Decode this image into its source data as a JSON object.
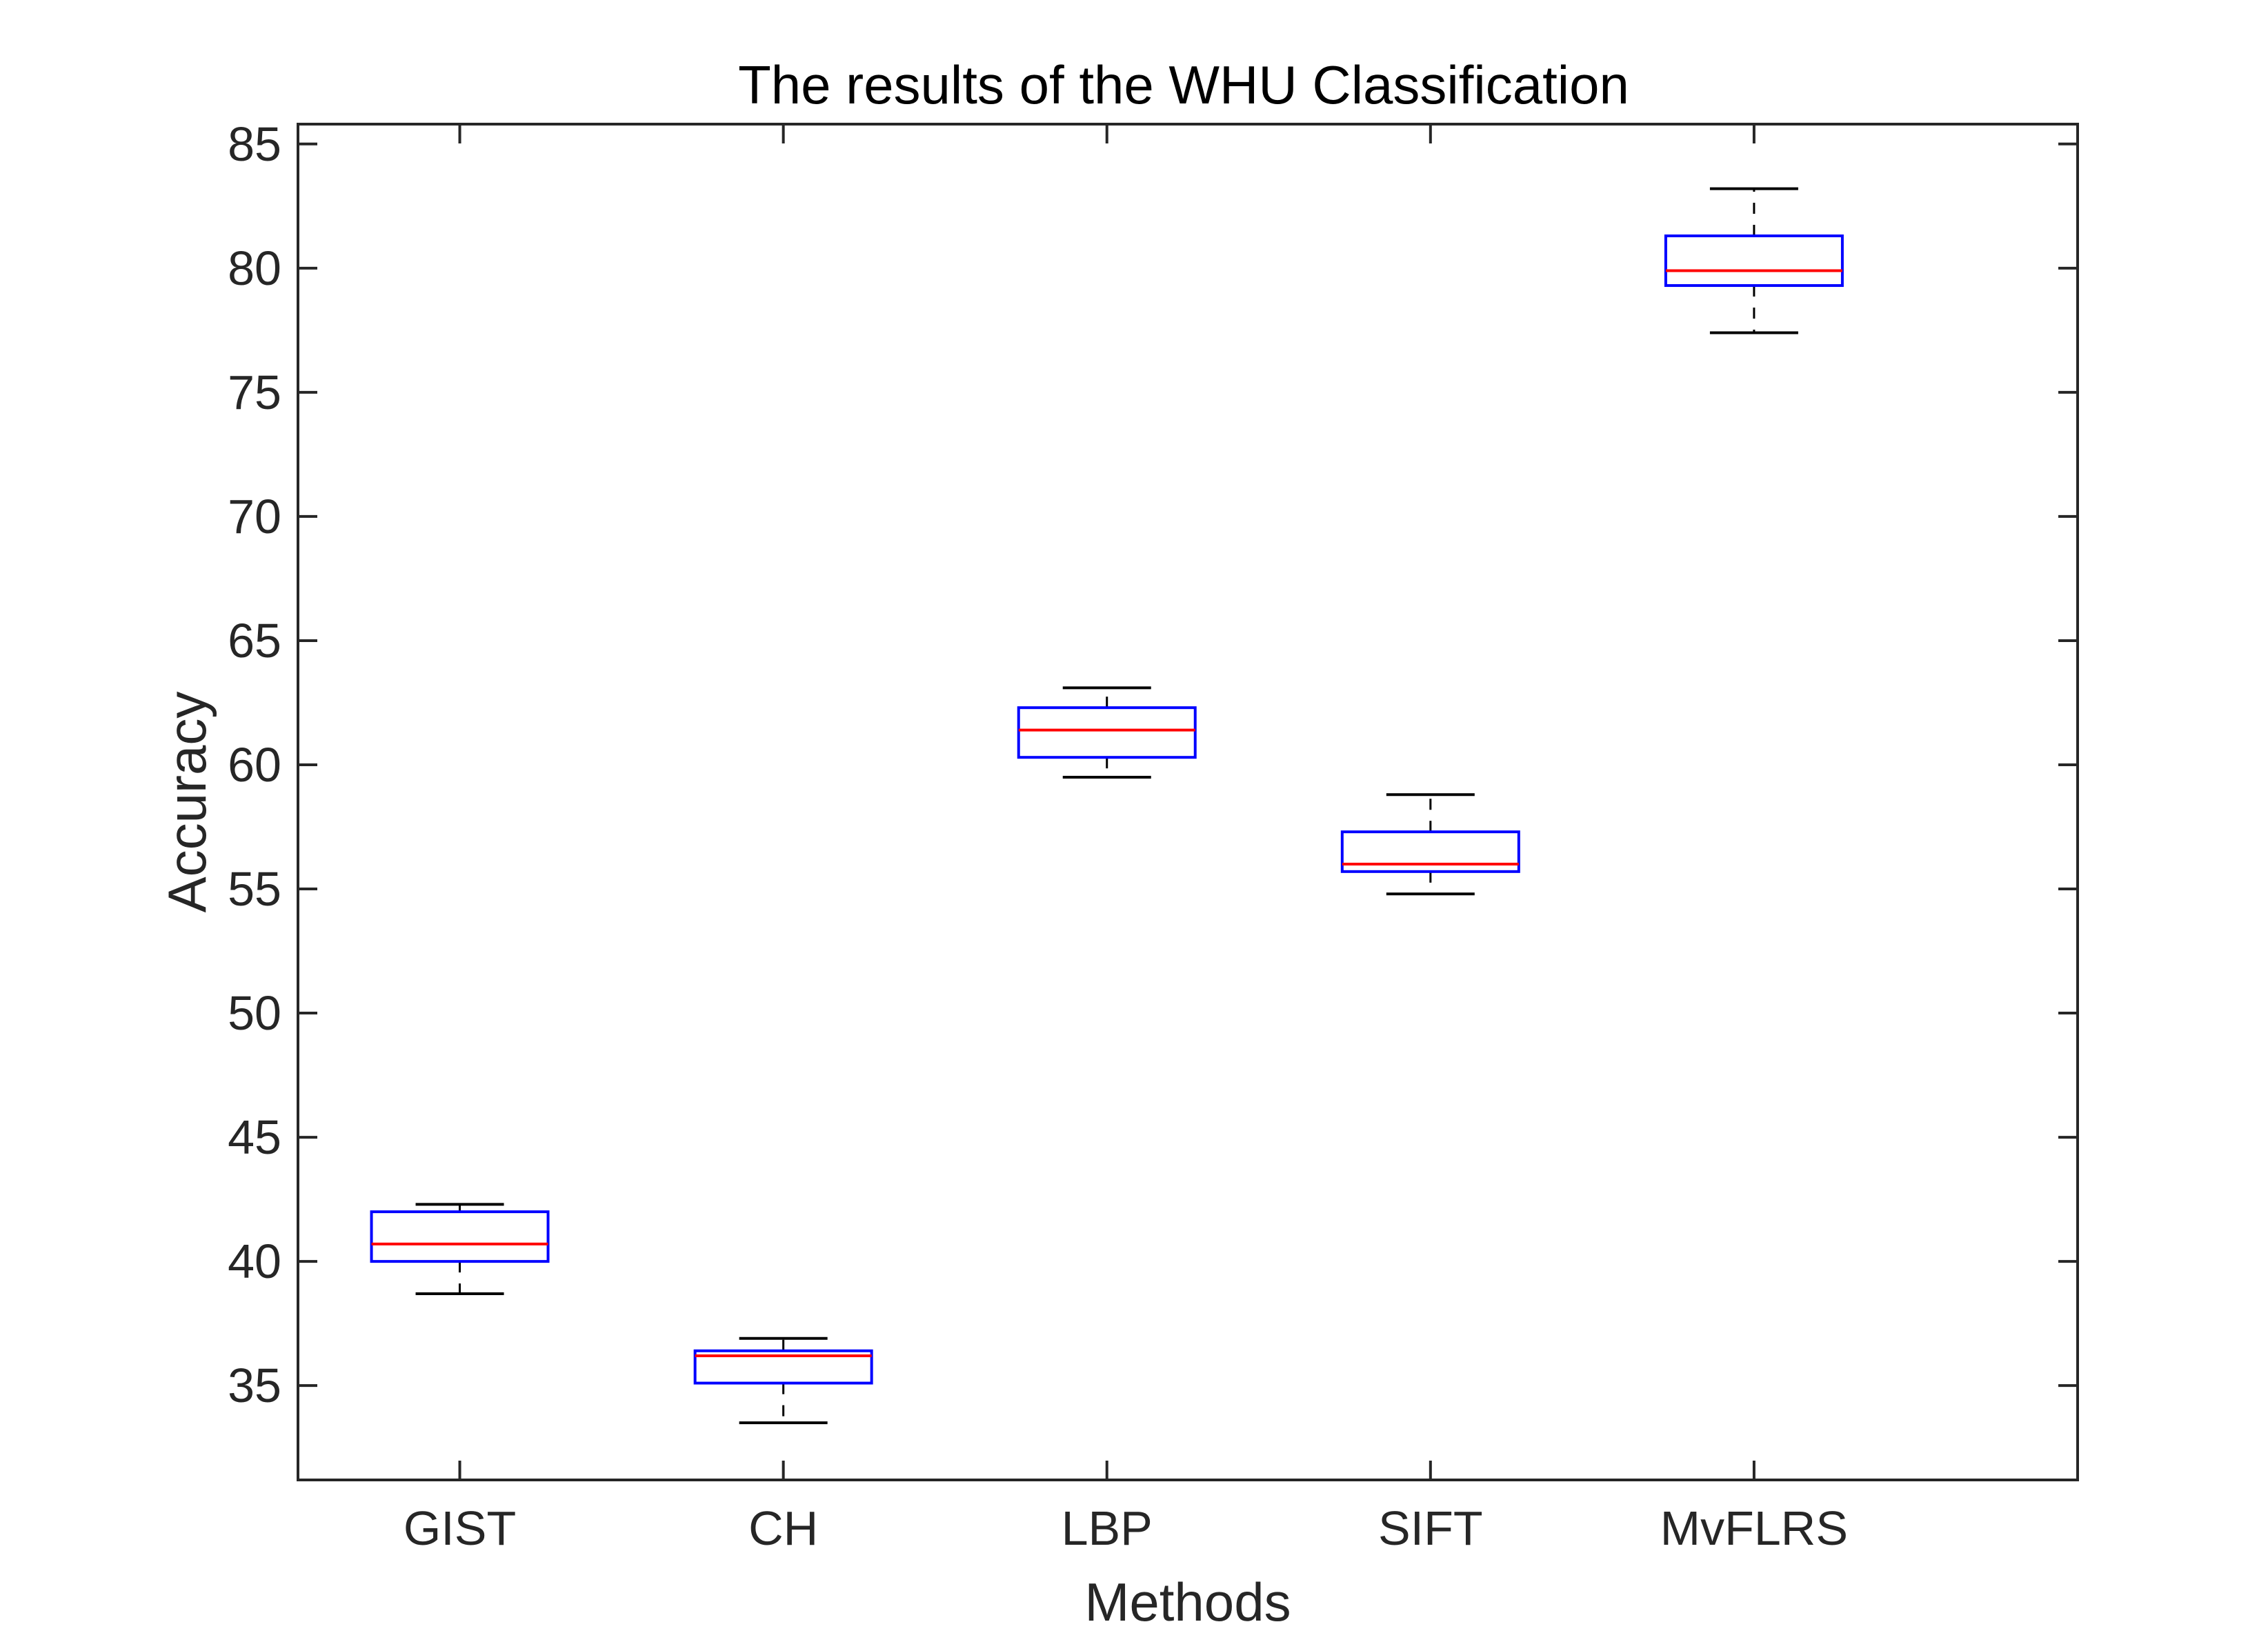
{
  "chart_data": {
    "type": "box",
    "title": "The results of the WHU Classification",
    "xlabel": "Methods",
    "ylabel": "Accuracy",
    "ylim": [
      31.2,
      85.8
    ],
    "yticks": [
      35,
      40,
      45,
      50,
      55,
      60,
      65,
      70,
      75,
      80,
      85
    ],
    "categories": [
      "GIST",
      "CH",
      "LBP",
      "SIFT",
      "MvFLRS"
    ],
    "boxes": [
      {
        "name": "GIST",
        "whisker_low": 38.7,
        "q1": 40.0,
        "median": 40.7,
        "q3": 42.0,
        "whisker_high": 42.3
      },
      {
        "name": "CH",
        "whisker_low": 33.5,
        "q1": 35.1,
        "median": 36.2,
        "q3": 36.4,
        "whisker_high": 36.9
      },
      {
        "name": "LBP",
        "whisker_low": 59.5,
        "q1": 60.3,
        "median": 61.4,
        "q3": 62.3,
        "whisker_high": 63.1
      },
      {
        "name": "SIFT",
        "whisker_low": 54.8,
        "q1": 55.7,
        "median": 56.0,
        "q3": 57.3,
        "whisker_high": 58.8
      },
      {
        "name": "MvFLRS",
        "whisker_low": 77.4,
        "q1": 79.3,
        "median": 79.9,
        "q3": 81.3,
        "whisker_high": 83.2
      }
    ],
    "grid": false,
    "legend": "none",
    "colors": {
      "box": "#0000ff",
      "median": "#ff0000",
      "whisker": "#000000",
      "axis": "#262626"
    }
  }
}
